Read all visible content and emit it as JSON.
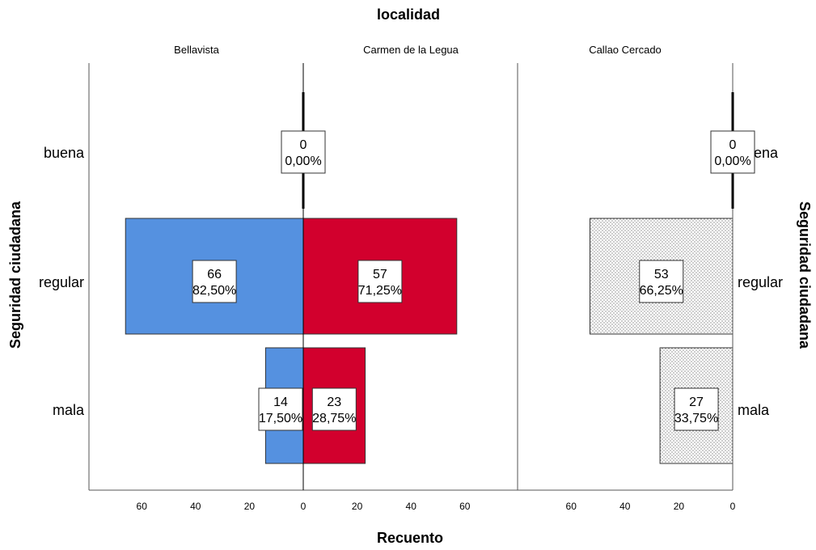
{
  "chart_data": {
    "type": "bar",
    "subtype": "population-pyramid",
    "panel_title": "localidad",
    "xlabel": "Recuento",
    "ylabel": "Seguridad ciudadana",
    "categories": [
      "buena",
      "regular",
      "mala"
    ],
    "xlim": [
      0,
      80
    ],
    "xticks": [
      0,
      20,
      40,
      60
    ],
    "grid": false,
    "panels": [
      {
        "name": "Bellavista",
        "direction": "left",
        "color": "#5591e0",
        "pattern": "solid",
        "values": [
          0,
          66,
          14
        ],
        "percents": [
          "0,00%",
          "82,50%",
          "17,50%"
        ]
      },
      {
        "name": "Carmen de la Legua",
        "direction": "right",
        "color": "#d2002d",
        "pattern": "solid",
        "values": [
          0,
          57,
          23
        ],
        "percents": [
          "0,00%",
          "71,25%",
          "28,75%"
        ]
      },
      {
        "name": "Callao Cercado",
        "direction": "left",
        "color": "#ffffff",
        "pattern": "dotted",
        "values": [
          0,
          53,
          27
        ],
        "percents": [
          "0,00%",
          "66,25%",
          "33,75%"
        ]
      }
    ]
  }
}
